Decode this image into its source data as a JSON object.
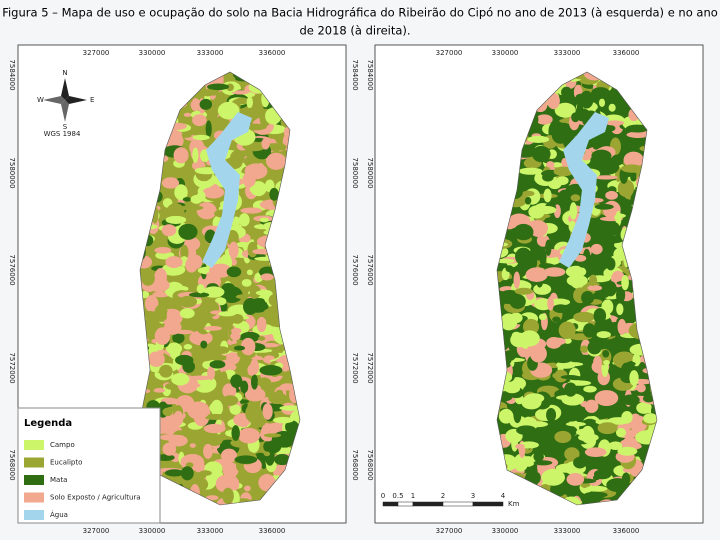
{
  "header": {
    "title_line1": "Figura 5 – Mapa de uso e ocupação do solo na Bacia Hidrográfica do Ribeirão do Cipó no ano de 2013 (à esquerda) e no ano",
    "title_line2": "de 2018 (à direita)."
  },
  "maps": {
    "x_ticks": [
      327000,
      330000,
      333000,
      336000
    ],
    "y_ticks": [
      7584000,
      7580000,
      7576000,
      7572000,
      7568000
    ]
  },
  "north_arrow": {
    "n": "N",
    "s": "S",
    "e": "E",
    "w": "W",
    "datum": "WGS 1984"
  },
  "legend": {
    "title": "Legenda",
    "items": [
      {
        "label": "Campo",
        "color": "#ccf56a"
      },
      {
        "label": "Eucalipto",
        "color": "#9ba532"
      },
      {
        "label": "Mata",
        "color": "#2f6e12"
      },
      {
        "label": "Solo Exposto / Agricultura",
        "color": "#f2a88f"
      },
      {
        "label": "Água",
        "color": "#a3d6ec"
      }
    ]
  },
  "scale_bar": {
    "labels": [
      "0",
      "0.5",
      "1",
      "2",
      "3",
      "4"
    ],
    "unit": "Km"
  }
}
